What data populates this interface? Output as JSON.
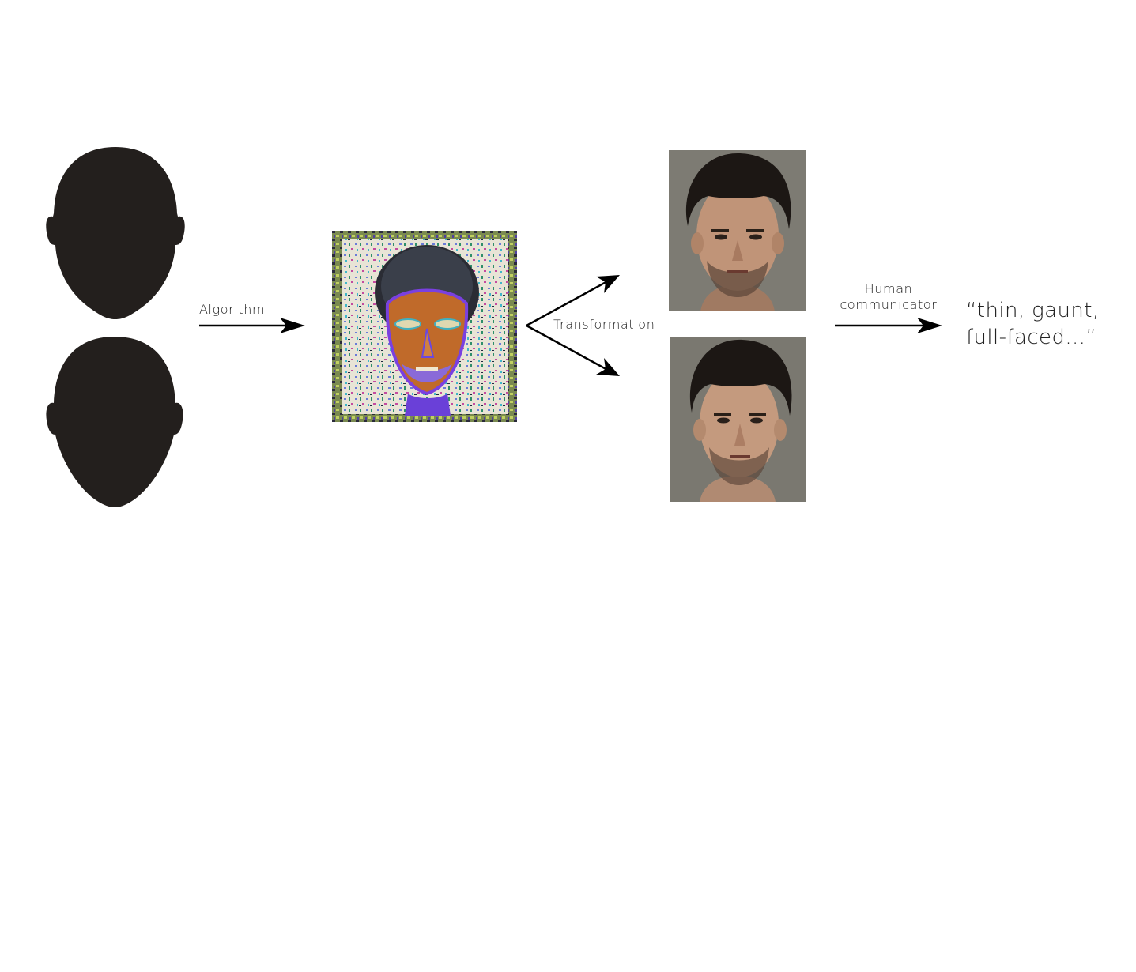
{
  "labels": {
    "algorithm": "Algorithm",
    "transformation": "Transformation",
    "human_communicator_line1": "Human",
    "human_communicator_line2": "communicator"
  },
  "quote": {
    "line1": "“thin, gaunt,",
    "line2": "full-faced...”"
  },
  "colors": {
    "silhouette": "#231f1d",
    "arrow": "#000000",
    "photo_background": "#7a7a72",
    "hair": "#1c1714",
    "skin": "#b98a6e"
  },
  "icons": {
    "head_silhouette": "head-silhouette-icon",
    "arrow": "arrow-right-icon"
  }
}
